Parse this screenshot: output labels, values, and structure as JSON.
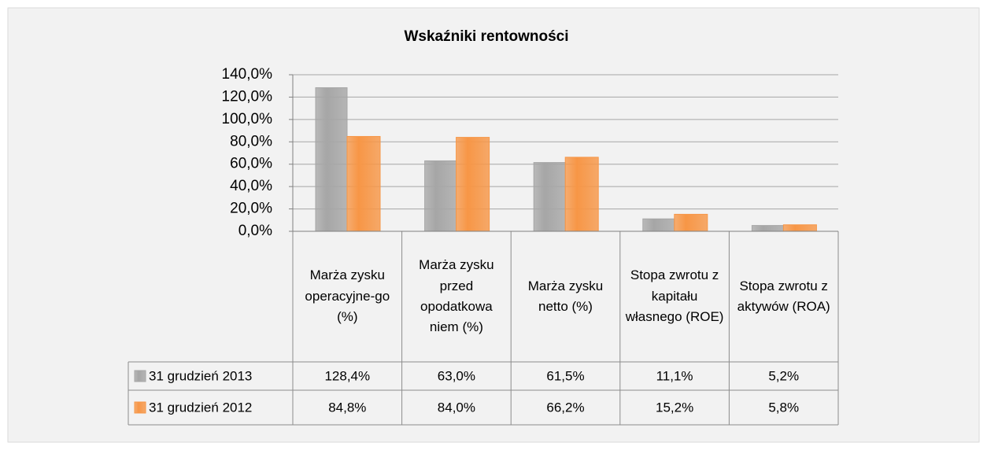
{
  "chart_data": {
    "type": "bar",
    "title": "Wskaźniki rentowności",
    "categories": [
      "Marża zysku operacyjne-go (%)",
      "Marża zysku przed opodatkowa niem (%)",
      "Marża zysku netto (%)",
      "Stopa zwrotu z kapitału własnego (ROE)",
      "Stopa zwrotu z aktywów (ROA)"
    ],
    "series": [
      {
        "name": "31 grudzień 2013",
        "color": "#a6a6a6",
        "values": [
          128.4,
          63.0,
          61.5,
          11.1,
          5.2
        ],
        "value_labels": [
          "128,4%",
          "63,0%",
          "61,5%",
          "11,1%",
          "5,2%"
        ]
      },
      {
        "name": "31 grudzień 2012",
        "color": "#f79646",
        "values": [
          84.8,
          84.0,
          66.2,
          15.2,
          5.8
        ],
        "value_labels": [
          "84,8%",
          "84,0%",
          "66,2%",
          "15,2%",
          "5,8%"
        ]
      }
    ],
    "ylim": [
      0,
      140
    ],
    "yticks": [
      {
        "value": 0,
        "label": "0,0%"
      },
      {
        "value": 20,
        "label": "20,0%"
      },
      {
        "value": 40,
        "label": "40,0%"
      },
      {
        "value": 60,
        "label": "60,0%"
      },
      {
        "value": 80,
        "label": "80,0%"
      },
      {
        "value": 100,
        "label": "100,0%"
      },
      {
        "value": 120,
        "label": "120,0%"
      },
      {
        "value": 140,
        "label": "140,0%"
      }
    ],
    "grid": true
  }
}
